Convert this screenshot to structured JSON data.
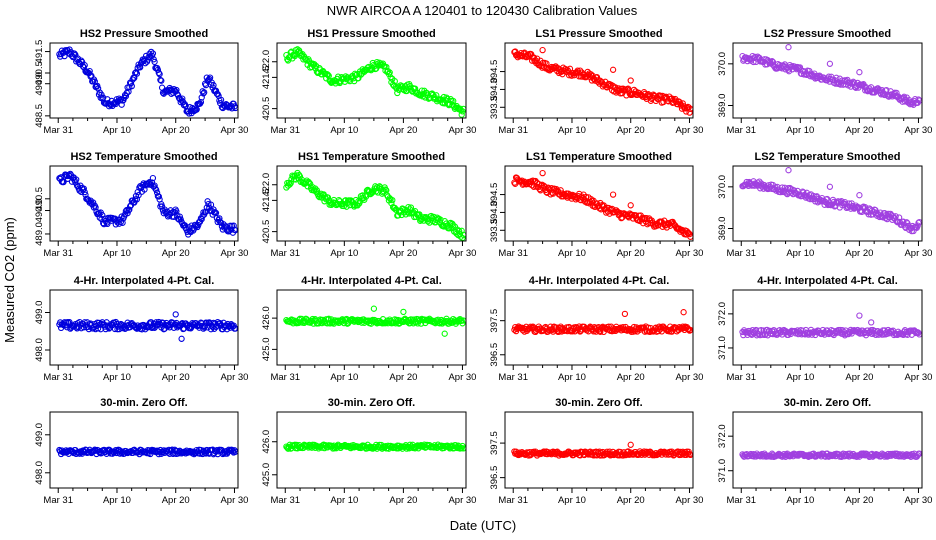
{
  "title": "NWR    AIRCOA A    120401 to 120430    Calibration Values",
  "xlabel": "Date (UTC)",
  "ylabel": "Measured CO2 (ppm)",
  "x_ticks": [
    "Mar 31",
    "Apr 10",
    "Apr 20",
    "Apr 30"
  ],
  "colors": {
    "HS2": "#0000dd",
    "HS1": "#00ff00",
    "LS1": "#ff0000",
    "LS2": "#a040e0"
  },
  "chart_data": [
    {
      "type": "scatter",
      "row": 0,
      "col": 0,
      "series": "HS2",
      "title": "HS2 Pressure Smoothed",
      "ylim": [
        488.4,
        491.9
      ],
      "yticks": [
        "488.5",
        "490.0",
        "490.5",
        "491.5"
      ],
      "ytick_values": [
        488.5,
        490.0,
        490.5,
        491.5
      ],
      "trend": [
        [
          0,
          491.3
        ],
        [
          2,
          491.5
        ],
        [
          5,
          490.6
        ],
        [
          8,
          489.1
        ],
        [
          11,
          489.2
        ],
        [
          14,
          490.9
        ],
        [
          16,
          491.4
        ],
        [
          18,
          489.6
        ],
        [
          20,
          489.7
        ],
        [
          22,
          488.7
        ],
        [
          24,
          489.0
        ],
        [
          25.5,
          490.3
        ],
        [
          28,
          489.0
        ],
        [
          30,
          488.9
        ]
      ],
      "noise": 0.18,
      "outliers": []
    },
    {
      "type": "scatter",
      "row": 0,
      "col": 1,
      "series": "HS1",
      "title": "HS1 Pressure Smoothed",
      "ylim": [
        420.2,
        422.6
      ],
      "yticks": [
        "420.5",
        "421.5",
        "422.0"
      ],
      "ytick_values": [
        420.5,
        421.5,
        422.0
      ],
      "trend": [
        [
          0,
          422.1
        ],
        [
          2,
          422.3
        ],
        [
          5,
          421.8
        ],
        [
          8,
          421.4
        ],
        [
          12,
          421.5
        ],
        [
          15,
          421.9
        ],
        [
          17,
          421.8
        ],
        [
          19,
          421.1
        ],
        [
          21,
          421.2
        ],
        [
          23,
          421.0
        ],
        [
          25,
          420.9
        ],
        [
          28,
          420.7
        ],
        [
          30,
          420.4
        ]
      ],
      "noise": 0.12,
      "outliers": []
    },
    {
      "type": "scatter",
      "row": 0,
      "col": 2,
      "series": "LS1",
      "title": "LS1 Pressure Smoothed",
      "ylim": [
        393.2,
        395.3
      ],
      "yticks": [
        "393.5",
        "394.0",
        "394.5"
      ],
      "ytick_values": [
        393.5,
        394.0,
        394.5
      ],
      "trend": [
        [
          0,
          395.0
        ],
        [
          3,
          394.9
        ],
        [
          6,
          394.6
        ],
        [
          9,
          394.5
        ],
        [
          12,
          394.45
        ],
        [
          15,
          394.2
        ],
        [
          18,
          393.95
        ],
        [
          21,
          393.9
        ],
        [
          24,
          393.75
        ],
        [
          27,
          393.7
        ],
        [
          30,
          393.4
        ]
      ],
      "noise": 0.1,
      "outliers": [
        [
          5,
          395.1
        ],
        [
          17,
          394.55
        ],
        [
          20,
          394.25
        ]
      ]
    },
    {
      "type": "scatter",
      "row": 0,
      "col": 3,
      "series": "LS2",
      "title": "LS2 Pressure Smoothed",
      "ylim": [
        368.7,
        370.5
      ],
      "yticks": [
        "369.0",
        "370.0"
      ],
      "ytick_values": [
        369.0,
        370.0
      ],
      "trend": [
        [
          0,
          370.15
        ],
        [
          3,
          370.1
        ],
        [
          6,
          369.95
        ],
        [
          10,
          369.85
        ],
        [
          14,
          369.65
        ],
        [
          18,
          369.55
        ],
        [
          22,
          369.4
        ],
        [
          26,
          369.25
        ],
        [
          29,
          369.05
        ],
        [
          30,
          369.15
        ]
      ],
      "noise": 0.08,
      "outliers": [
        [
          8,
          370.4
        ],
        [
          15,
          370.0
        ],
        [
          20,
          369.8
        ]
      ]
    },
    {
      "type": "scatter",
      "row": 1,
      "col": 0,
      "series": "HS2",
      "title": "HS2 Temperature Smoothed",
      "ylim": [
        488.7,
        491.9
      ],
      "yticks": [
        "489.0",
        "490.0",
        "490.5"
      ],
      "ytick_values": [
        489.0,
        490.0,
        490.5
      ],
      "trend": [
        [
          0,
          491.2
        ],
        [
          2,
          491.5
        ],
        [
          5,
          490.6
        ],
        [
          8,
          489.5
        ],
        [
          11,
          489.6
        ],
        [
          14,
          490.9
        ],
        [
          16,
          491.3
        ],
        [
          18,
          489.9
        ],
        [
          20,
          489.9
        ],
        [
          22,
          489.1
        ],
        [
          24,
          489.4
        ],
        [
          25.5,
          490.3
        ],
        [
          28,
          489.3
        ],
        [
          30,
          489.2
        ]
      ],
      "noise": 0.17,
      "outliers": []
    },
    {
      "type": "scatter",
      "row": 1,
      "col": 1,
      "series": "HS1",
      "title": "HS1 Temperature Smoothed",
      "ylim": [
        420.2,
        422.6
      ],
      "yticks": [
        "420.5",
        "421.5",
        "422.0"
      ],
      "ytick_values": [
        420.5,
        421.5,
        422.0
      ],
      "trend": [
        [
          0,
          422.0
        ],
        [
          2,
          422.3
        ],
        [
          5,
          421.8
        ],
        [
          8,
          421.4
        ],
        [
          12,
          421.4
        ],
        [
          15,
          421.9
        ],
        [
          17,
          421.8
        ],
        [
          19,
          421.1
        ],
        [
          21,
          421.2
        ],
        [
          23,
          420.9
        ],
        [
          25,
          420.9
        ],
        [
          28,
          420.7
        ],
        [
          30,
          420.4
        ]
      ],
      "noise": 0.12,
      "outliers": []
    },
    {
      "type": "scatter",
      "row": 1,
      "col": 2,
      "series": "LS1",
      "title": "LS1 Temperature Smoothed",
      "ylim": [
        393.2,
        395.3
      ],
      "yticks": [
        "393.5",
        "394.0",
        "394.5"
      ],
      "ytick_values": [
        393.5,
        394.0,
        394.5
      ],
      "trend": [
        [
          0,
          394.9
        ],
        [
          3,
          394.85
        ],
        [
          6,
          394.6
        ],
        [
          9,
          394.5
        ],
        [
          12,
          394.4
        ],
        [
          15,
          394.15
        ],
        [
          18,
          393.95
        ],
        [
          21,
          393.85
        ],
        [
          24,
          393.7
        ],
        [
          27,
          393.65
        ],
        [
          30,
          393.35
        ]
      ],
      "noise": 0.1,
      "outliers": [
        [
          5,
          395.1
        ],
        [
          17,
          394.5
        ],
        [
          20,
          394.2
        ]
      ]
    },
    {
      "type": "scatter",
      "row": 1,
      "col": 3,
      "series": "LS2",
      "title": "LS2 Temperature Smoothed",
      "ylim": [
        368.7,
        370.5
      ],
      "yticks": [
        "369.0",
        "370.0"
      ],
      "ytick_values": [
        369.0,
        370.0
      ],
      "trend": [
        [
          0,
          370.1
        ],
        [
          3,
          370.05
        ],
        [
          6,
          369.95
        ],
        [
          10,
          369.85
        ],
        [
          14,
          369.65
        ],
        [
          18,
          369.55
        ],
        [
          22,
          369.4
        ],
        [
          26,
          369.25
        ],
        [
          29,
          369.0
        ],
        [
          30,
          369.1
        ]
      ],
      "noise": 0.08,
      "outliers": [
        [
          8,
          370.4
        ],
        [
          15,
          370.0
        ],
        [
          20,
          369.8
        ]
      ]
    },
    {
      "type": "scatter",
      "row": 2,
      "col": 0,
      "series": "HS2",
      "title": "4-Hr. Interpolated 4-Pt. Cal.",
      "ylim": [
        497.6,
        499.6
      ],
      "yticks": [
        "498.0",
        "499.0"
      ],
      "ytick_values": [
        498.0,
        499.0
      ],
      "trend": [
        [
          0,
          498.65
        ],
        [
          30,
          498.65
        ]
      ],
      "noise": 0.1,
      "outliers": [
        [
          20,
          498.95
        ],
        [
          21,
          498.3
        ]
      ]
    },
    {
      "type": "scatter",
      "row": 2,
      "col": 1,
      "series": "HS1",
      "title": "4-Hr. Interpolated 4-Pt. Cal.",
      "ylim": [
        424.5,
        426.9
      ],
      "yticks": [
        "425.0",
        "426.0"
      ],
      "ytick_values": [
        425.0,
        426.0
      ],
      "trend": [
        [
          0,
          425.9
        ],
        [
          30,
          425.9
        ]
      ],
      "noise": 0.08,
      "outliers": [
        [
          15,
          426.3
        ],
        [
          20,
          426.2
        ],
        [
          27,
          425.5
        ]
      ]
    },
    {
      "type": "scatter",
      "row": 2,
      "col": 2,
      "series": "LS1",
      "title": "4-Hr. Interpolated 4-Pt. Cal.",
      "ylim": [
        396.2,
        398.4
      ],
      "yticks": [
        "396.5",
        "397.5"
      ],
      "ytick_values": [
        396.5,
        397.5
      ],
      "trend": [
        [
          0,
          397.25
        ],
        [
          30,
          397.25
        ]
      ],
      "noise": 0.08,
      "outliers": [
        [
          19,
          397.7
        ],
        [
          29,
          397.75
        ]
      ]
    },
    {
      "type": "scatter",
      "row": 2,
      "col": 3,
      "series": "LS2",
      "title": "4-Hr. Interpolated 4-Pt. Cal.",
      "ylim": [
        370.5,
        372.7
      ],
      "yticks": [
        "371.0",
        "372.0"
      ],
      "ytick_values": [
        371.0,
        372.0
      ],
      "trend": [
        [
          0,
          371.45
        ],
        [
          30,
          371.45
        ]
      ],
      "noise": 0.08,
      "outliers": [
        [
          20,
          371.95
        ],
        [
          22,
          371.75
        ]
      ]
    },
    {
      "type": "scatter",
      "row": 3,
      "col": 0,
      "series": "HS2",
      "title": "30-min. Zero Off.",
      "ylim": [
        497.6,
        499.6
      ],
      "yticks": [
        "498.0",
        "499.0"
      ],
      "ytick_values": [
        498.0,
        499.0
      ],
      "trend": [
        [
          0,
          498.55
        ],
        [
          30,
          498.55
        ]
      ],
      "noise": 0.06,
      "outliers": []
    },
    {
      "type": "scatter",
      "row": 3,
      "col": 1,
      "series": "HS1",
      "title": "30-min. Zero Off.",
      "ylim": [
        424.6,
        426.9
      ],
      "yticks": [
        "425.0",
        "426.0"
      ],
      "ytick_values": [
        425.0,
        426.0
      ],
      "trend": [
        [
          0,
          425.85
        ],
        [
          30,
          425.85
        ]
      ],
      "noise": 0.06,
      "outliers": []
    },
    {
      "type": "scatter",
      "row": 3,
      "col": 2,
      "series": "LS1",
      "title": "30-min. Zero Off.",
      "ylim": [
        396.2,
        398.4
      ],
      "yticks": [
        "396.5",
        "397.5"
      ],
      "ytick_values": [
        396.5,
        397.5
      ],
      "trend": [
        [
          0,
          397.2
        ],
        [
          30,
          397.2
        ]
      ],
      "noise": 0.06,
      "outliers": [
        [
          20,
          397.45
        ]
      ]
    },
    {
      "type": "scatter",
      "row": 3,
      "col": 3,
      "series": "LS2",
      "title": "30-min. Zero Off.",
      "ylim": [
        370.5,
        372.7
      ],
      "yticks": [
        "371.0",
        "372.0"
      ],
      "ytick_values": [
        371.0,
        372.0
      ],
      "trend": [
        [
          0,
          371.45
        ],
        [
          30,
          371.45
        ]
      ],
      "noise": 0.05,
      "outliers": []
    }
  ]
}
